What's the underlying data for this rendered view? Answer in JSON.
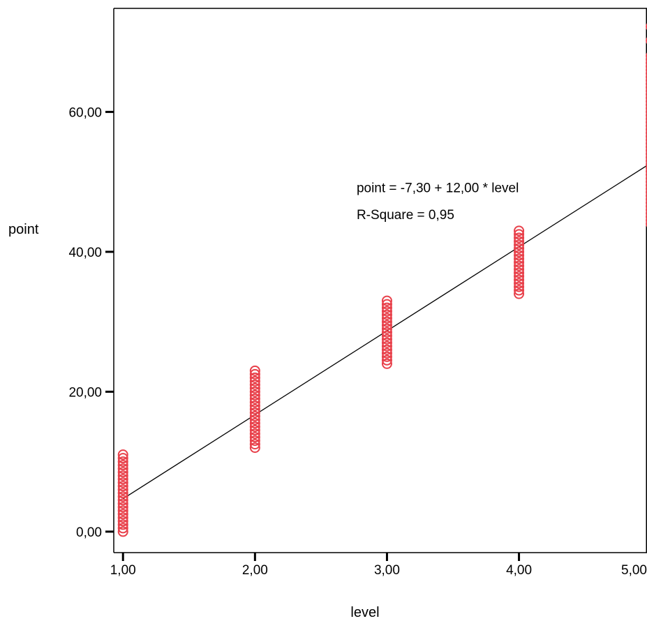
{
  "chart_data": {
    "type": "scatter",
    "xlabel": "level",
    "ylabel": "point",
    "xlim": [
      0.93,
      4.97
    ],
    "ylim": [
      -3.0,
      74.8
    ],
    "x_ticks": [
      {
        "value": 1,
        "label": "1,00"
      },
      {
        "value": 2,
        "label": "2,00"
      },
      {
        "value": 3,
        "label": "3,00"
      },
      {
        "value": 4,
        "label": "4,00"
      },
      {
        "value": 5,
        "label": "5,00"
      }
    ],
    "y_ticks": [
      {
        "value": 0,
        "label": "0,00"
      },
      {
        "value": 20,
        "label": "20,00"
      },
      {
        "value": 40,
        "label": "40,00"
      },
      {
        "value": 60,
        "label": "60,00"
      }
    ],
    "grid": false,
    "marker": "open-circle",
    "marker_color": "#e8404a",
    "series": [
      {
        "points": [
          {
            "x": 1,
            "y": 0.0
          },
          {
            "x": 1,
            "y": 0.5
          },
          {
            "x": 1,
            "y": 1.0
          },
          {
            "x": 1,
            "y": 1.5
          },
          {
            "x": 1,
            "y": 2.0
          },
          {
            "x": 1,
            "y": 2.5
          },
          {
            "x": 1,
            "y": 3.0
          },
          {
            "x": 1,
            "y": 3.5
          },
          {
            "x": 1,
            "y": 4.0
          },
          {
            "x": 1,
            "y": 4.5
          },
          {
            "x": 1,
            "y": 5.0
          },
          {
            "x": 1,
            "y": 5.5
          },
          {
            "x": 1,
            "y": 6.0
          },
          {
            "x": 1,
            "y": 6.5
          },
          {
            "x": 1,
            "y": 7.0
          },
          {
            "x": 1,
            "y": 7.5
          },
          {
            "x": 1,
            "y": 8.0
          },
          {
            "x": 1,
            "y": 8.5
          },
          {
            "x": 1,
            "y": 9.0
          },
          {
            "x": 1,
            "y": 9.5
          },
          {
            "x": 1,
            "y": 10.0
          },
          {
            "x": 1,
            "y": 10.5
          },
          {
            "x": 1,
            "y": 11.0
          },
          {
            "x": 2,
            "y": 12.0
          },
          {
            "x": 2,
            "y": 12.5
          },
          {
            "x": 2,
            "y": 13.0
          },
          {
            "x": 2,
            "y": 13.5
          },
          {
            "x": 2,
            "y": 14.0
          },
          {
            "x": 2,
            "y": 14.5
          },
          {
            "x": 2,
            "y": 15.0
          },
          {
            "x": 2,
            "y": 15.5
          },
          {
            "x": 2,
            "y": 16.0
          },
          {
            "x": 2,
            "y": 16.5
          },
          {
            "x": 2,
            "y": 17.0
          },
          {
            "x": 2,
            "y": 17.5
          },
          {
            "x": 2,
            "y": 18.0
          },
          {
            "x": 2,
            "y": 18.5
          },
          {
            "x": 2,
            "y": 19.0
          },
          {
            "x": 2,
            "y": 19.5
          },
          {
            "x": 2,
            "y": 20.0
          },
          {
            "x": 2,
            "y": 20.5
          },
          {
            "x": 2,
            "y": 21.0
          },
          {
            "x": 2,
            "y": 21.5
          },
          {
            "x": 2,
            "y": 22.0
          },
          {
            "x": 2,
            "y": 22.5
          },
          {
            "x": 2,
            "y": 23.0
          },
          {
            "x": 3,
            "y": 24.0
          },
          {
            "x": 3,
            "y": 24.5
          },
          {
            "x": 3,
            "y": 25.0
          },
          {
            "x": 3,
            "y": 25.5
          },
          {
            "x": 3,
            "y": 26.0
          },
          {
            "x": 3,
            "y": 26.5
          },
          {
            "x": 3,
            "y": 27.0
          },
          {
            "x": 3,
            "y": 27.5
          },
          {
            "x": 3,
            "y": 28.0
          },
          {
            "x": 3,
            "y": 28.5
          },
          {
            "x": 3,
            "y": 29.0
          },
          {
            "x": 3,
            "y": 29.5
          },
          {
            "x": 3,
            "y": 30.0
          },
          {
            "x": 3,
            "y": 30.5
          },
          {
            "x": 3,
            "y": 31.0
          },
          {
            "x": 3,
            "y": 31.5
          },
          {
            "x": 3,
            "y": 32.0
          },
          {
            "x": 3,
            "y": 32.5
          },
          {
            "x": 3,
            "y": 33.0
          },
          {
            "x": 4,
            "y": 34.0
          },
          {
            "x": 4,
            "y": 34.5
          },
          {
            "x": 4,
            "y": 35.0
          },
          {
            "x": 4,
            "y": 35.5
          },
          {
            "x": 4,
            "y": 36.0
          },
          {
            "x": 4,
            "y": 36.5
          },
          {
            "x": 4,
            "y": 37.0
          },
          {
            "x": 4,
            "y": 37.5
          },
          {
            "x": 4,
            "y": 38.0
          },
          {
            "x": 4,
            "y": 38.5
          },
          {
            "x": 4,
            "y": 39.0
          },
          {
            "x": 4,
            "y": 39.5
          },
          {
            "x": 4,
            "y": 40.0
          },
          {
            "x": 4,
            "y": 40.5
          },
          {
            "x": 4,
            "y": 41.0
          },
          {
            "x": 4,
            "y": 41.5
          },
          {
            "x": 4,
            "y": 42.0
          },
          {
            "x": 4,
            "y": 42.5
          },
          {
            "x": 4,
            "y": 43.0
          },
          {
            "x": 5,
            "y": 44.0
          },
          {
            "x": 5,
            "y": 44.5
          },
          {
            "x": 5,
            "y": 45.0
          },
          {
            "x": 5,
            "y": 45.5
          },
          {
            "x": 5,
            "y": 46.0
          },
          {
            "x": 5,
            "y": 46.5
          },
          {
            "x": 5,
            "y": 47.0
          },
          {
            "x": 5,
            "y": 47.5
          },
          {
            "x": 5,
            "y": 48.0
          },
          {
            "x": 5,
            "y": 48.5
          },
          {
            "x": 5,
            "y": 49.0
          },
          {
            "x": 5,
            "y": 49.5
          },
          {
            "x": 5,
            "y": 50.0
          },
          {
            "x": 5,
            "y": 50.5
          },
          {
            "x": 5,
            "y": 51.0
          },
          {
            "x": 5,
            "y": 51.5
          },
          {
            "x": 5,
            "y": 52.0
          },
          {
            "x": 5,
            "y": 52.5
          },
          {
            "x": 5,
            "y": 53.0
          },
          {
            "x": 5,
            "y": 53.5
          },
          {
            "x": 5,
            "y": 54.0
          },
          {
            "x": 5,
            "y": 54.5
          },
          {
            "x": 5,
            "y": 55.0
          },
          {
            "x": 5,
            "y": 55.5
          },
          {
            "x": 5,
            "y": 56.0
          },
          {
            "x": 5,
            "y": 56.5
          },
          {
            "x": 5,
            "y": 57.0
          },
          {
            "x": 5,
            "y": 57.5
          },
          {
            "x": 5,
            "y": 58.0
          },
          {
            "x": 5,
            "y": 58.5
          },
          {
            "x": 5,
            "y": 59.0
          },
          {
            "x": 5,
            "y": 59.5
          },
          {
            "x": 5,
            "y": 60.0
          },
          {
            "x": 5,
            "y": 60.5
          },
          {
            "x": 5,
            "y": 61.0
          },
          {
            "x": 5,
            "y": 61.5
          },
          {
            "x": 5,
            "y": 62.0
          },
          {
            "x": 5,
            "y": 62.5
          },
          {
            "x": 5,
            "y": 63.0
          },
          {
            "x": 5,
            "y": 63.5
          },
          {
            "x": 5,
            "y": 64.0
          },
          {
            "x": 5,
            "y": 64.5
          },
          {
            "x": 5,
            "y": 65.0
          },
          {
            "x": 5,
            "y": 65.5
          },
          {
            "x": 5,
            "y": 66.0
          },
          {
            "x": 5,
            "y": 66.5
          },
          {
            "x": 5,
            "y": 67.0
          },
          {
            "x": 5,
            "y": 67.5
          },
          {
            "x": 5,
            "y": 68.0
          },
          {
            "x": 5,
            "y": 70.2
          },
          {
            "x": 5,
            "y": 72.2
          }
        ]
      }
    ],
    "fit_line": {
      "intercept": -7.3,
      "slope": 12.0,
      "x_range": [
        1,
        5
      ],
      "color": "#000000"
    },
    "annotations": [
      {
        "text": "point = -7,30 + 12,00 * level",
        "x": 2.77,
        "y": 48.5
      },
      {
        "text": "R-Square = 0,95",
        "x": 2.77,
        "y": 44.7
      }
    ]
  }
}
